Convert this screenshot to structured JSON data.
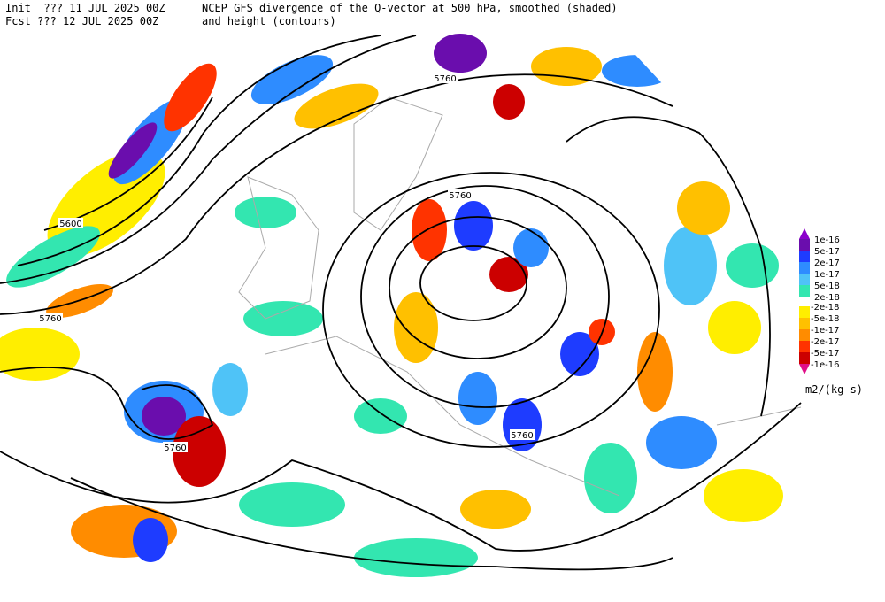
{
  "header": {
    "init": "Init  ??? 11 JUL 2025 00Z",
    "fcst": "Fcst ??? 12 JUL 2025 00Z",
    "title": "NCEP GFS divergence of the Q-vector at 500 hPa, smoothed (shaded)",
    "subtitle": "and height (contours)"
  },
  "contour_labels": [
    "5760",
    "5600",
    "5760",
    "5760",
    "5760",
    "5760"
  ],
  "colorbar": {
    "labels": [
      "1e-16",
      "5e-17",
      "2e-17",
      "1e-17",
      "5e-18",
      "2e-18",
      "-2e-18",
      "-5e-18",
      "-1e-17",
      "-2e-17",
      "-5e-17",
      "-1e-16"
    ],
    "units": "m2/(kg s)"
  }
}
